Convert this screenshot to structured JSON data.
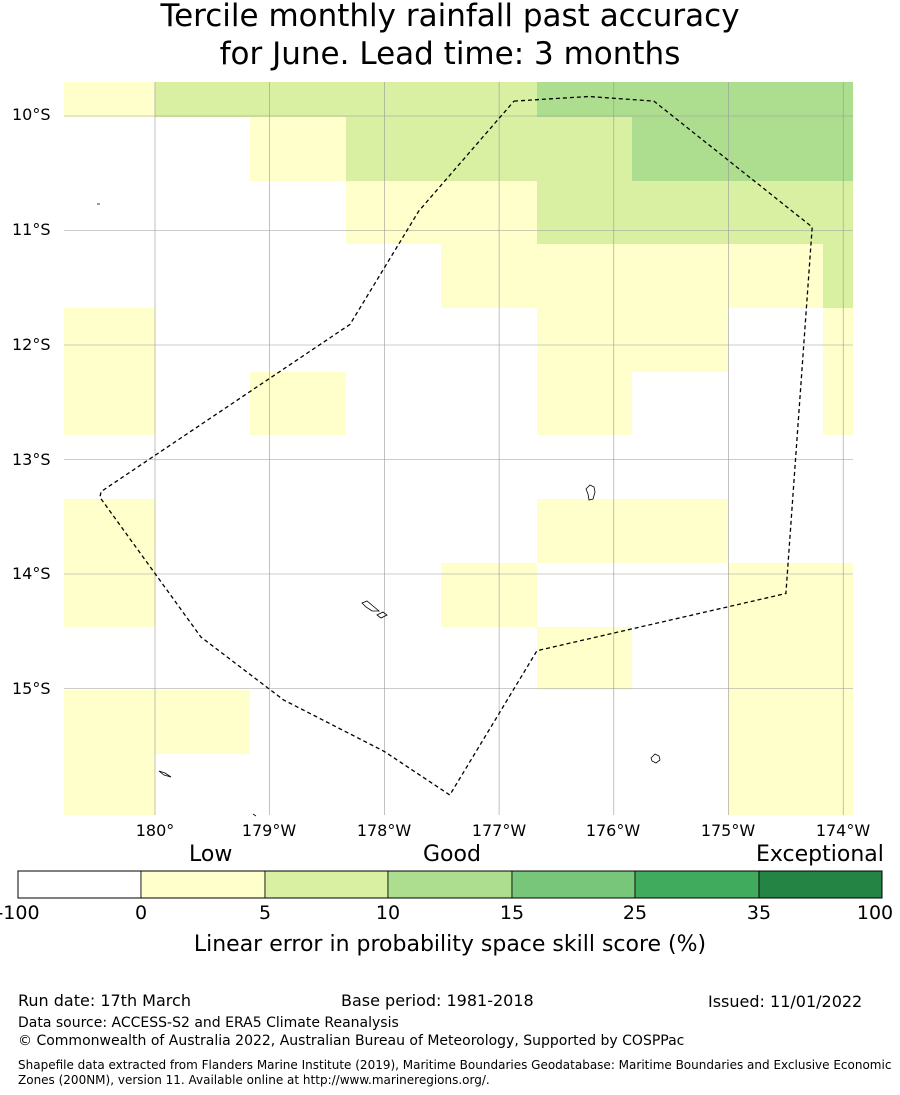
{
  "title_line1": "Tercile monthly rainfall past accuracy",
  "title_line2": "for June. Lead time: 3 months",
  "lat_labels": [
    "10°S",
    "11°S",
    "12°S",
    "13°S",
    "14°S",
    "15°S"
  ],
  "lon_labels": [
    "180°",
    "179°W",
    "178°W",
    "177°W",
    "176°W",
    "175°W",
    "174°W"
  ],
  "colors": {
    "neg": "#ffffff",
    "c0_5": "#ffffcc",
    "c5_10": "#d9f0a3",
    "c10_15": "#addd8e",
    "c15_25": "#78c679",
    "c25_35": "#41ab5d",
    "c35_100": "#238443",
    "grid": "#999999",
    "boundary": "#000000"
  },
  "colorbar": {
    "category_labels": [
      "Low",
      "Good",
      "Exceptional"
    ],
    "ticks": [
      "-100",
      "0",
      "5",
      "10",
      "15",
      "25",
      "35",
      "100"
    ],
    "title": "Linear error in probability space skill score (%)"
  },
  "skill_grid": {
    "lon_range": [
      -180.8,
      -173.9
    ],
    "lat_range": [
      -9.72,
      -16.12
    ],
    "cell_size_deg": [
      0.833,
      0.56
    ],
    "rows": [
      [
        1,
        2,
        2,
        2,
        2,
        3,
        3,
        3,
        3
      ],
      [
        0,
        0,
        1,
        2,
        2,
        2,
        3,
        3,
        3
      ],
      [
        0,
        0,
        0,
        1,
        1,
        2,
        2,
        2,
        2
      ],
      [
        0,
        0,
        0,
        0,
        1,
        1,
        1,
        1,
        2
      ],
      [
        1,
        0,
        0,
        0,
        0,
        1,
        1,
        0,
        1
      ],
      [
        1,
        0,
        1,
        0,
        0,
        1,
        0,
        0,
        1
      ],
      [
        0,
        0,
        0,
        0,
        0,
        0,
        0,
        0,
        0
      ],
      [
        1,
        0,
        0,
        0,
        0,
        1,
        1,
        0,
        0
      ],
      [
        1,
        0,
        0,
        0,
        1,
        0,
        0,
        1,
        1
      ],
      [
        0,
        0,
        0,
        0,
        0,
        1,
        0,
        1,
        1
      ],
      [
        1,
        1,
        0,
        0,
        0,
        0,
        0,
        1,
        1
      ],
      [
        1,
        0,
        0,
        0,
        0,
        0,
        0,
        1,
        1
      ]
    ]
  },
  "eez_boundary_lonlat": [
    [
      -176.87,
      -9.87
    ],
    [
      -176.22,
      -9.83
    ],
    [
      -175.65,
      -9.87
    ],
    [
      -174.27,
      -10.97
    ],
    [
      -174.5,
      -14.17
    ],
    [
      -176.67,
      -14.67
    ],
    [
      -177.43,
      -15.93
    ],
    [
      -178.0,
      -15.55
    ],
    [
      -178.88,
      -15.1
    ],
    [
      -179.6,
      -14.55
    ],
    [
      -180.48,
      -13.33
    ],
    [
      -180.47,
      -13.28
    ],
    [
      -178.3,
      -11.82
    ],
    [
      -177.7,
      -10.83
    ],
    [
      -176.87,
      -9.87
    ]
  ],
  "footer": {
    "run_date": "Run date: 17th March",
    "base_period": "Base period: 1981-2018",
    "issued": "Issued: 11/01/2022",
    "data_source": "Data source: ACCESS-S2 and ERA5 Climate Reanalysis",
    "copyright": "© Commonwealth of Australia 2022, Australian Bureau of Meteorology, Supported by COSPPac",
    "shapefile_line1": "Shapefile data extracted from Flanders Marine Institute (2019), Maritime Boundaries Geodatabase: Maritime Boundaries and Exclusive Economic",
    "shapefile_line2": "Zones (200NM), version 11. Available online at http://www.marineregions.org/."
  }
}
